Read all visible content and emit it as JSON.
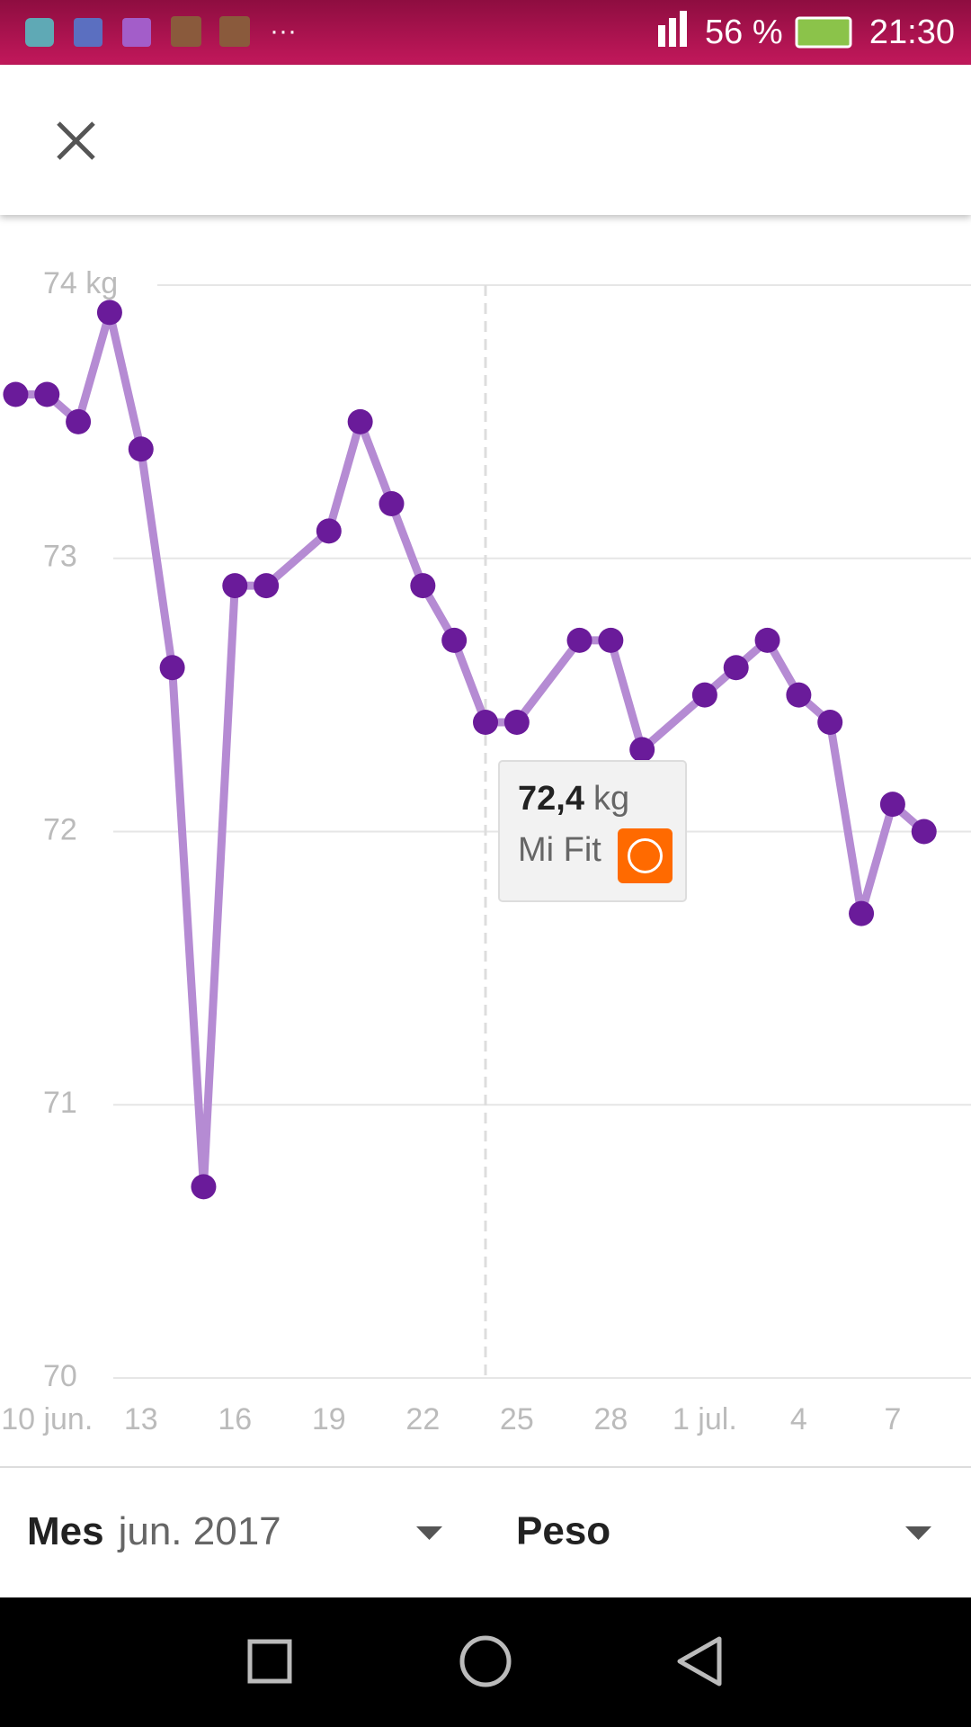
{
  "status_bar": {
    "battery": "56 %",
    "time": "21:30",
    "more": "···"
  },
  "chart_data": {
    "type": "line",
    "x": [
      9,
      10,
      11,
      12,
      13,
      14,
      15,
      16,
      17,
      19,
      20,
      21,
      22,
      23,
      24,
      25,
      27,
      28,
      29,
      31,
      32,
      33,
      34,
      35,
      36,
      37,
      38
    ],
    "series": [
      {
        "name": "Peso",
        "color": "#b58bd3",
        "marker_color": "#6a1b9a",
        "values": [
          73.6,
          73.6,
          73.5,
          73.9,
          73.4,
          72.6,
          70.7,
          72.9,
          72.9,
          73.1,
          73.5,
          73.2,
          72.9,
          72.7,
          72.4,
          72.4,
          72.7,
          72.7,
          72.3,
          72.5,
          72.6,
          72.7,
          72.5,
          72.4,
          71.7,
          72.1,
          72.0
        ]
      }
    ],
    "xlim": [
      8.5,
      39.5
    ],
    "xticks": [
      {
        "value": 10,
        "label": "10 jun."
      },
      13,
      16,
      19,
      22,
      25,
      28,
      {
        "value": 31,
        "label": "1 jul."
      },
      {
        "value": 34,
        "label": "4"
      },
      {
        "value": 37,
        "label": "7"
      }
    ],
    "ylim": [
      70,
      74
    ],
    "yticks": [
      70,
      71,
      72,
      73,
      {
        "value": 74,
        "label": "74 kg"
      }
    ],
    "grid": true,
    "selected_x": 24,
    "tooltip": {
      "value": "72,4",
      "unit": "kg",
      "source": "Mi Fit"
    }
  },
  "footer": {
    "period_label": "Mes",
    "period": "jun. 2017",
    "metric": "Peso"
  }
}
